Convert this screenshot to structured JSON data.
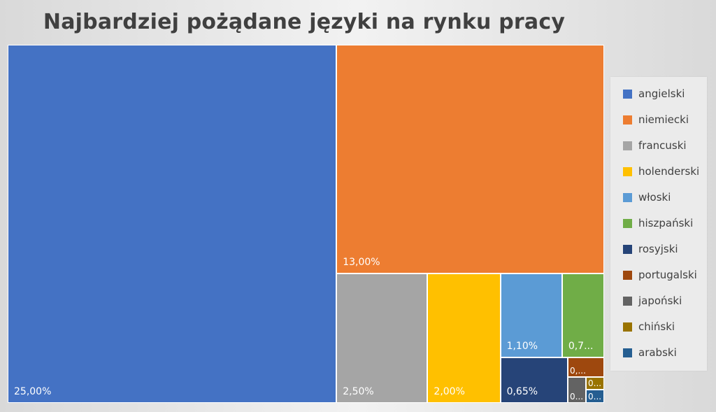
{
  "chart_data": {
    "type": "treemap",
    "title": "Najbardziej pożądane języki na rynku pracy",
    "legend_position": "right",
    "items": [
      {
        "name": "angielski",
        "value": 25.0,
        "label": "25,00%",
        "color": "#4472C4"
      },
      {
        "name": "niemiecki",
        "value": 13.0,
        "label": "13,00%",
        "color": "#ED7D31"
      },
      {
        "name": "francuski",
        "value": 2.5,
        "label": "2,50%",
        "color": "#A5A5A5"
      },
      {
        "name": "holenderski",
        "value": 2.0,
        "label": "2,00%",
        "color": "#FFC000"
      },
      {
        "name": "włoski",
        "value": 1.1,
        "label": "1,10%",
        "color": "#5B9BD5"
      },
      {
        "name": "hiszpański",
        "value": 0.75,
        "label": "0,7...",
        "color": "#70AD47"
      },
      {
        "name": "rosyjski",
        "value": 0.65,
        "label": "0,65%",
        "color": "#264478"
      },
      {
        "name": "portugalski",
        "value": 0.15,
        "label": "0,...",
        "color": "#9E480E"
      },
      {
        "name": "japoński",
        "value": 0.1,
        "label": "0...",
        "color": "#636363"
      },
      {
        "name": "chiński",
        "value": 0.05,
        "label": "0...",
        "color": "#997300"
      },
      {
        "name": "arabski",
        "value": 0.05,
        "label": "0...",
        "color": "#255E91"
      }
    ]
  }
}
